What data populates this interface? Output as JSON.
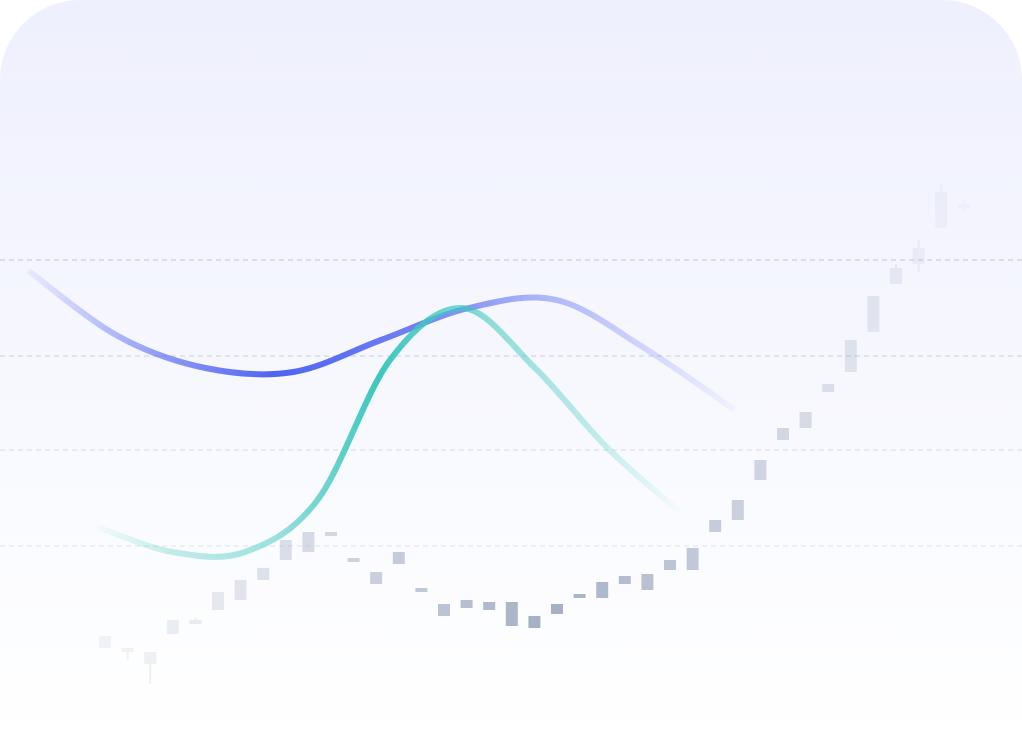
{
  "chart_data": [
    {
      "type": "candlestick",
      "x": [
        1,
        2,
        3,
        4,
        5,
        6,
        7,
        8,
        9,
        10,
        11,
        12,
        13,
        14,
        15,
        16,
        17,
        18,
        19,
        20,
        21,
        22,
        23,
        24,
        25,
        26,
        27,
        28,
        29,
        30,
        31,
        32,
        33,
        34,
        35,
        36,
        37,
        38,
        39
      ],
      "open": [
        21.0,
        18.0,
        17.0,
        21.5,
        24.0,
        27.5,
        30.0,
        35.0,
        40.0,
        42.0,
        46.0,
        40.0,
        37.0,
        42.0,
        33.0,
        29.0,
        30.0,
        29.5,
        29.5,
        26.0,
        29.0,
        31.0,
        34.5,
        36.0,
        36.5,
        40.0,
        37.5,
        50.0,
        55.0,
        65.0,
        73.0,
        77.0,
        84.0,
        87.0,
        97.0,
        109.0,
        114.0,
        123.0,
        129.0
      ],
      "close": [
        18.0,
        17.0,
        14.0,
        25.0,
        25.0,
        32.0,
        35.0,
        38.0,
        45.0,
        47.0,
        47.0,
        40.5,
        34.0,
        39.0,
        33.0,
        26.0,
        28.0,
        27.5,
        23.5,
        23.0,
        26.5,
        31.5,
        30.5,
        34.0,
        32.5,
        37.5,
        43.0,
        47.0,
        50.0,
        60.0,
        70.0,
        73.0,
        82.0,
        95.0,
        106.0,
        113.0,
        118.0,
        132.0,
        128.0
      ],
      "high": [
        21.0,
        18.0,
        17.0,
        25.0,
        25.5,
        32.0,
        35.0,
        38.0,
        45.0,
        47.0,
        47.0,
        40.5,
        37.0,
        42.0,
        33.0,
        29.0,
        30.0,
        29.5,
        29.5,
        26.0,
        29.0,
        31.5,
        34.5,
        36.0,
        36.5,
        40.0,
        43.0,
        50.0,
        55.0,
        65.0,
        73.0,
        77.0,
        84.0,
        95.0,
        106.0,
        114.0,
        120.0,
        134.0,
        130.0
      ],
      "low": [
        18.0,
        15.0,
        9.0,
        21.5,
        24.0,
        27.5,
        30.0,
        35.0,
        40.0,
        42.0,
        46.0,
        40.0,
        34.0,
        39.0,
        33.0,
        26.0,
        28.0,
        27.5,
        23.5,
        23.0,
        26.5,
        31.0,
        30.5,
        34.0,
        32.5,
        37.5,
        37.5,
        47.0,
        50.0,
        60.0,
        70.0,
        73.0,
        82.0,
        87.0,
        97.0,
        109.0,
        112.0,
        123.0,
        127.0
      ],
      "ylim": [
        0,
        150
      ],
      "grid": true
    },
    {
      "type": "line",
      "series": [
        {
          "values": [
            112.0,
            96.0,
            88.0,
            87.0,
            95.0,
            103.0,
            105.0,
            93.0,
            78.0
          ]
        },
        {
          "values": [
            48.0,
            42.0,
            42.0,
            55.0,
            90.0,
            103.0,
            88.0,
            68.0,
            52.0
          ]
        }
      ],
      "grid": true
    }
  ],
  "colors": {
    "bar": "#9ea9c0",
    "line_1": "#4f63f0",
    "line_2": "#3dc7bd",
    "grid": "#c9cdd9"
  }
}
